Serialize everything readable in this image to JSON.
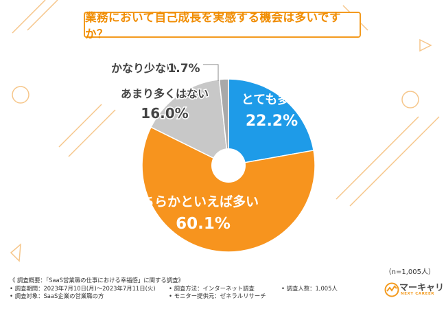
{
  "chart_data": {
    "type": "pie",
    "title": "業務において自己成長を実感する機会は多いですか？",
    "categories": [
      "とても多い",
      "どちらかといえば多い",
      "あまり多くはない",
      "かなり少ない"
    ],
    "values": [
      22.2,
      60.1,
      16.0,
      1.7
    ],
    "value_labels": [
      "22.2%",
      "60.1%",
      "16.0%",
      "1.7%"
    ],
    "colors": [
      "#1e9be8",
      "#f7941e",
      "#c8c8c8",
      "#a9a9a9"
    ],
    "donut": true,
    "start": "12 o'clock, clockwise",
    "legend": "none",
    "sample": "（n=1,005人）"
  },
  "footer": {
    "survey_title": "《 調査概要：「SaaS営業職の仕事における幸福感」に関する調査》",
    "period": "• 調査期間：2023年7月10日(月)～2023年7月11日(火)",
    "method": "• 調査方法：インターネット調査",
    "count": "• 調査人数：1,005人",
    "target": "• 調査対象：SaaS企業の営業職の方",
    "provider": "• モニター提供元：ゼネラルリサーチ"
  },
  "logo": {
    "name": "マーキャリ",
    "sub": "NEXT CAREER",
    "accent": "#f39a1e"
  }
}
